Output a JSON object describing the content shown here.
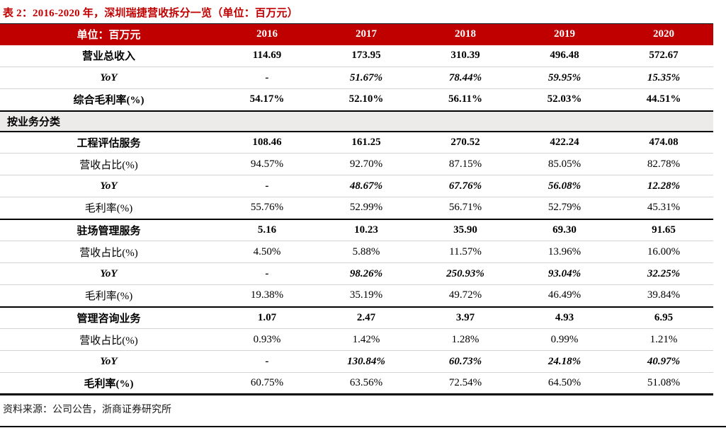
{
  "title": "表 2：2016-2020 年，深圳瑞捷营收拆分一览（单位：百万元）",
  "footer": {
    "source": "资料来源：公司公告，浙商证券研究所"
  },
  "colors": {
    "accent_red": "#C00000",
    "header_bg": "#C00000",
    "header_text": "#ffffff",
    "section_band_bg": "#EDEAEA",
    "divider_gray": "#D5D2D2",
    "divider_black": "#000000"
  },
  "table": {
    "header": [
      "单位：百万元",
      "2016",
      "2017",
      "2018",
      "2019",
      "2020"
    ],
    "rows": [
      {
        "type": "data",
        "label": "营业总收入",
        "label_style": "bold",
        "value_style": "bold",
        "divider": "gray",
        "values": [
          "114.69",
          "173.95",
          "310.39",
          "496.48",
          "572.67"
        ]
      },
      {
        "type": "data",
        "label": "YoY",
        "label_style": "bi",
        "value_style": "bi",
        "divider": "gray",
        "values": [
          "-",
          "51.67%",
          "78.44%",
          "59.95%",
          "15.35%"
        ]
      },
      {
        "type": "data",
        "label": "综合毛利率(%)",
        "label_style": "bold",
        "value_style": "bold",
        "divider": "none",
        "values": [
          "54.17%",
          "52.10%",
          "56.11%",
          "52.03%",
          "44.51%"
        ]
      },
      {
        "type": "section",
        "label": "按业务分类"
      },
      {
        "type": "data",
        "label": "工程评估服务",
        "label_style": "bold",
        "value_style": "bold",
        "divider": "gray",
        "values": [
          "108.46",
          "161.25",
          "270.52",
          "422.24",
          "474.08"
        ]
      },
      {
        "type": "data",
        "label": "营收占比(%)",
        "label_style": "reg",
        "value_style": "reg",
        "divider": "gray",
        "values": [
          "94.57%",
          "92.70%",
          "87.15%",
          "85.05%",
          "82.78%"
        ]
      },
      {
        "type": "data",
        "label": "YoY",
        "label_style": "bi",
        "value_style": "bi",
        "divider": "gray",
        "values": [
          "-",
          "48.67%",
          "67.76%",
          "56.08%",
          "12.28%"
        ]
      },
      {
        "type": "data",
        "label": "毛利率(%)",
        "label_style": "reg",
        "value_style": "reg",
        "divider": "black",
        "values": [
          "55.76%",
          "52.99%",
          "56.71%",
          "52.79%",
          "45.31%"
        ]
      },
      {
        "type": "data",
        "label": "驻场管理服务",
        "label_style": "bold",
        "value_style": "bold",
        "divider": "gray",
        "values": [
          "5.16",
          "10.23",
          "35.90",
          "69.30",
          "91.65"
        ]
      },
      {
        "type": "data",
        "label": "营收占比(%)",
        "label_style": "reg",
        "value_style": "reg",
        "divider": "gray",
        "values": [
          "4.50%",
          "5.88%",
          "11.57%",
          "13.96%",
          "16.00%"
        ]
      },
      {
        "type": "data",
        "label": "YoY",
        "label_style": "bi",
        "value_style": "bi",
        "divider": "gray",
        "values": [
          "-",
          "98.26%",
          "250.93%",
          "93.04%",
          "32.25%"
        ]
      },
      {
        "type": "data",
        "label": "毛利率(%)",
        "label_style": "reg",
        "value_style": "reg",
        "divider": "black",
        "values": [
          "19.38%",
          "35.19%",
          "49.72%",
          "46.49%",
          "39.84%"
        ]
      },
      {
        "type": "data",
        "label": "管理咨询业务",
        "label_style": "bold",
        "value_style": "bold",
        "divider": "gray",
        "values": [
          "1.07",
          "2.47",
          "3.97",
          "4.93",
          "6.95"
        ]
      },
      {
        "type": "data",
        "label": "营收占比(%)",
        "label_style": "reg",
        "value_style": "reg",
        "divider": "gray",
        "values": [
          "0.93%",
          "1.42%",
          "1.28%",
          "0.99%",
          "1.21%"
        ]
      },
      {
        "type": "data",
        "label": "YoY",
        "label_style": "bi",
        "value_style": "bi",
        "divider": "gray",
        "values": [
          "-",
          "130.84%",
          "60.73%",
          "24.18%",
          "40.97%"
        ]
      },
      {
        "type": "data",
        "label": "毛利率(%)",
        "label_style": "bold",
        "value_style": "reg",
        "divider": "end",
        "values": [
          "60.75%",
          "63.56%",
          "72.54%",
          "64.50%",
          "51.08%"
        ]
      }
    ]
  }
}
